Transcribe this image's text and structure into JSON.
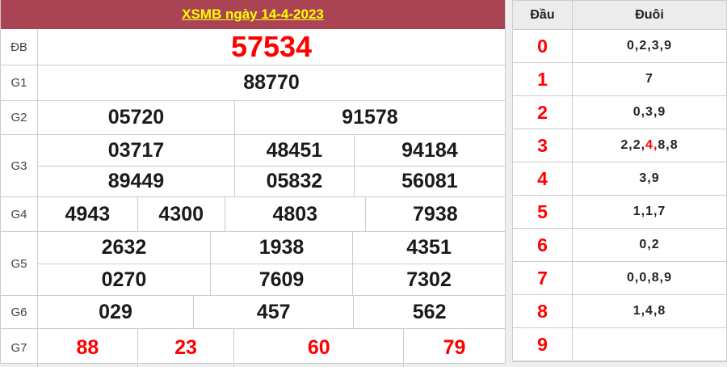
{
  "title": "XSMB ngày 14-4-2023",
  "colors": {
    "maroon": "#aa4455",
    "yellow": "#ffff00",
    "red": "#ff0000",
    "dark": "#1a1a1a",
    "page_bg": "#efefef"
  },
  "prizes": [
    {
      "label": "ĐB",
      "style": "special",
      "rows": [
        [
          "57534"
        ]
      ]
    },
    {
      "label": "G1",
      "style": "normal",
      "rows": [
        [
          "88770"
        ]
      ]
    },
    {
      "label": "G2",
      "style": "normal",
      "rows": [
        [
          "05720",
          "91578"
        ]
      ]
    },
    {
      "label": "G3",
      "style": "normal",
      "rows": [
        [
          "03717",
          "48451",
          "94184"
        ],
        [
          "89449",
          "05832",
          "56081"
        ]
      ]
    },
    {
      "label": "G4",
      "style": "normal",
      "rows": [
        [
          "4943",
          "4300",
          "4803",
          "7938"
        ]
      ]
    },
    {
      "label": "G5",
      "style": "normal",
      "rows": [
        [
          "2632",
          "1938",
          "4351"
        ],
        [
          "0270",
          "7609",
          "7302"
        ]
      ]
    },
    {
      "label": "G6",
      "style": "normal",
      "rows": [
        [
          "029",
          "457",
          "562"
        ]
      ]
    },
    {
      "label": "G7",
      "style": "red",
      "rows": [
        [
          "88",
          "23",
          "60",
          "79"
        ]
      ]
    }
  ],
  "head_tail": {
    "head_header": "Đầu",
    "tail_header": "Đuôi",
    "rows": [
      {
        "head": "0",
        "tail": "0,2,3,9"
      },
      {
        "head": "1",
        "tail": "7"
      },
      {
        "head": "2",
        "tail": "0,3,9"
      },
      {
        "head": "3",
        "tail": "2,2,4,8,8",
        "highlight_index": 2
      },
      {
        "head": "4",
        "tail": "3,9"
      },
      {
        "head": "5",
        "tail": "1,1,7"
      },
      {
        "head": "6",
        "tail": "0,2"
      },
      {
        "head": "7",
        "tail": "0,0,8,9"
      },
      {
        "head": "8",
        "tail": "1,4,8"
      },
      {
        "head": "9",
        "tail": ""
      }
    ]
  }
}
